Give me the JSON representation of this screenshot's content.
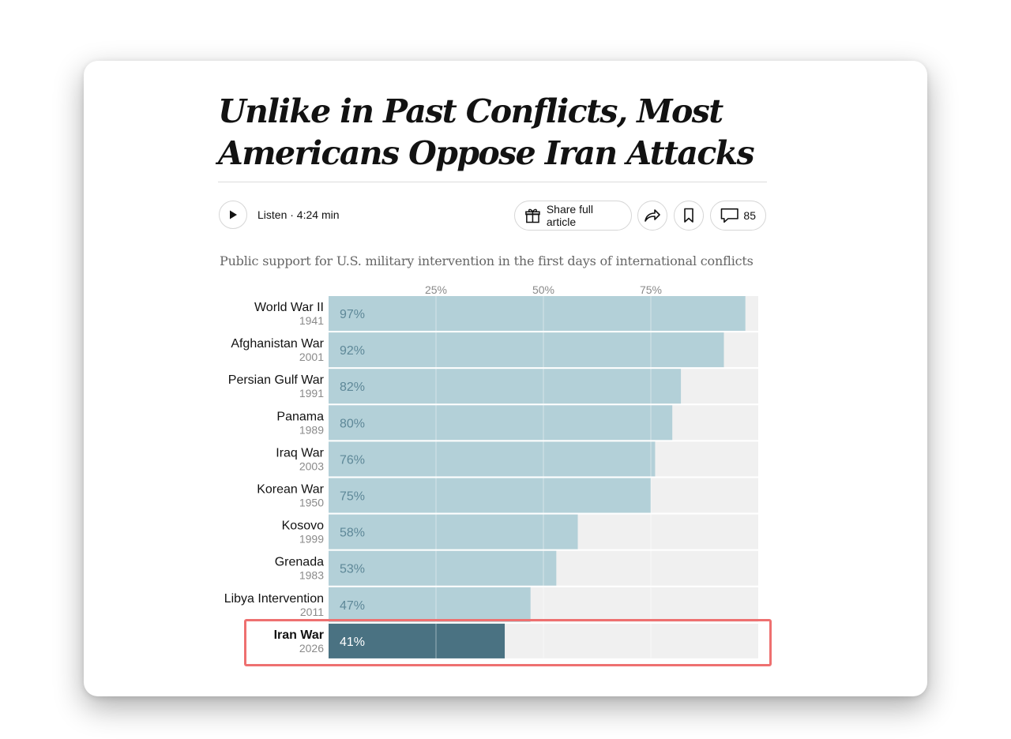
{
  "article": {
    "headline": "Unlike in Past Conflicts, Most Americans Oppose Iran Attacks",
    "listen_label": "Listen · 4:24 min",
    "share_label": "Share full article",
    "comment_count": "85"
  },
  "icons": {
    "play": "play-icon",
    "gift": "gift-icon",
    "share": "share-arrow-icon",
    "bookmark": "bookmark-icon",
    "comment": "comment-icon"
  },
  "colors": {
    "bar": "#b3d0d8",
    "bar_highlight": "#4a7282",
    "track": "#f0f0f0",
    "value_text": "#5e8898",
    "highlight_border": "#ee7070"
  },
  "chart_data": {
    "type": "bar",
    "orientation": "horizontal",
    "title": "Public support for U.S. military intervention in the first days of international conflicts",
    "xlim": [
      0,
      100
    ],
    "ticks": [
      25,
      50,
      75
    ],
    "tick_labels": [
      "25%",
      "50%",
      "75%"
    ],
    "categories": [
      "World War II",
      "Afghanistan War",
      "Persian Gulf War",
      "Panama",
      "Iraq War",
      "Korean War",
      "Kosovo",
      "Grenada",
      "Libya Intervention",
      "Iran War"
    ],
    "years": [
      "1941",
      "2001",
      "1991",
      "1989",
      "2003",
      "1950",
      "1999",
      "1983",
      "2011",
      "2026"
    ],
    "values": [
      97,
      92,
      82,
      80,
      76,
      75,
      58,
      53,
      47,
      41
    ],
    "value_labels": [
      "97%",
      "92%",
      "82%",
      "80%",
      "76%",
      "75%",
      "58%",
      "53%",
      "47%",
      "41%"
    ],
    "highlighted": "Iran War"
  }
}
